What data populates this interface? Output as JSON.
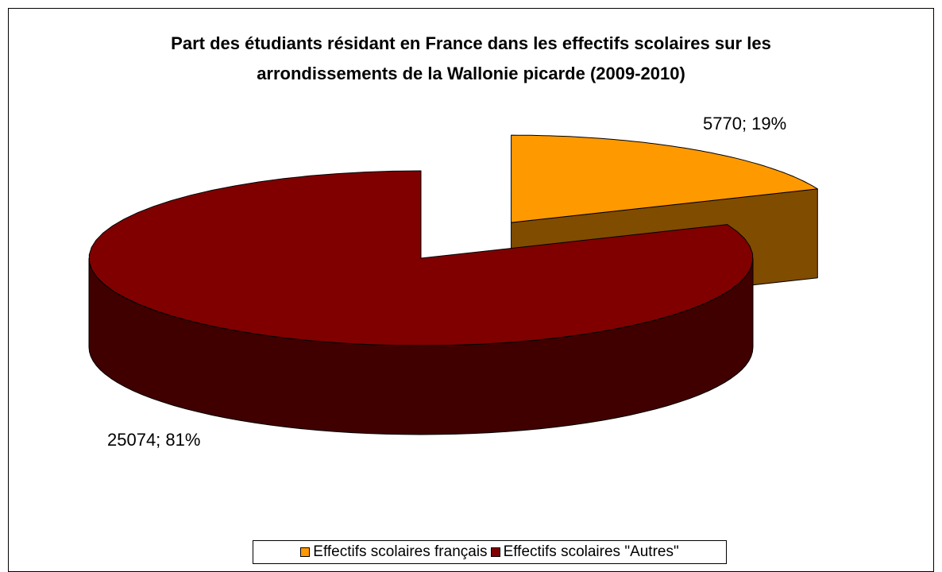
{
  "chart_data": {
    "type": "pie",
    "title": "Part des étudiants résidant en France dans les effectifs scolaires sur les arrondissements de la Wallonie picarde (2009-2010)",
    "categories": [
      "Effectifs scolaires français",
      "Effectifs scolaires \"Autres\""
    ],
    "values": [
      5770,
      25074
    ],
    "value_labels": [
      "5770; 19%",
      "25074; 81%"
    ],
    "colors": [
      "#FF9900",
      "#800000"
    ],
    "side_colors": [
      "#804C00",
      "#400000"
    ],
    "legend": "bottom"
  }
}
